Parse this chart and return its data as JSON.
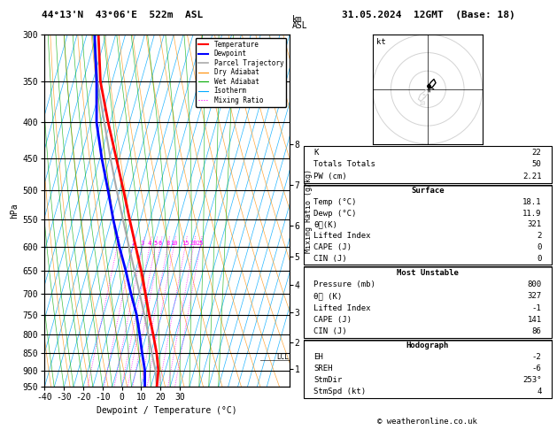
{
  "title_left": "44°13'N  43°06'E  522m  ASL",
  "title_right": "31.05.2024  12GMT  (Base: 18)",
  "xlabel": "Dewpoint / Temperature (°C)",
  "ylabel_left": "hPa",
  "pressure_levels": [
    300,
    350,
    400,
    450,
    500,
    550,
    600,
    650,
    700,
    750,
    800,
    850,
    900,
    950
  ],
  "pressure_min": 300,
  "pressure_max": 950,
  "temp_min": -40,
  "temp_max": 35,
  "temp_profile_T": [
    18.1,
    16.5,
    13.0,
    8.5,
    3.5,
    -1.5,
    -7.0,
    -13.5,
    -20.5,
    -28.0,
    -36.5,
    -46.0,
    -56.0,
    -64.0
  ],
  "temp_profile_P": [
    950,
    900,
    850,
    800,
    750,
    700,
    650,
    600,
    550,
    500,
    450,
    400,
    350,
    300
  ],
  "dewp_profile_T": [
    11.9,
    9.5,
    5.5,
    1.5,
    -3.0,
    -9.0,
    -15.0,
    -22.0,
    -29.0,
    -36.0,
    -44.0,
    -52.0,
    -58.0,
    -66.0
  ],
  "dewp_profile_P": [
    950,
    900,
    850,
    800,
    750,
    700,
    650,
    600,
    550,
    500,
    450,
    400,
    350,
    300
  ],
  "parcel_profile_T": [
    18.1,
    15.0,
    10.5,
    6.0,
    1.0,
    -4.5,
    -10.5,
    -17.0,
    -24.0,
    -31.5,
    -39.5,
    -48.0,
    -57.5,
    -66.0
  ],
  "parcel_profile_P": [
    950,
    900,
    850,
    800,
    750,
    700,
    650,
    600,
    550,
    500,
    450,
    400,
    350,
    300
  ],
  "temp_color": "#ff0000",
  "dewp_color": "#0000ff",
  "parcel_color": "#aaaaaa",
  "dry_adiabat_color": "#ff8c00",
  "wet_adiabat_color": "#00aa00",
  "isotherm_color": "#00aaff",
  "mixing_ratio_color": "#ff00ff",
  "lcl_pressure": 870,
  "mixing_ratio_values": [
    1,
    2,
    3,
    4,
    5,
    6,
    8,
    10,
    15,
    20,
    25
  ],
  "km_ticks": [
    1,
    2,
    3,
    4,
    5,
    6,
    7,
    8
  ],
  "km_pressures": [
    895,
    820,
    745,
    680,
    620,
    560,
    490,
    430
  ],
  "skew": 45,
  "copyright": "© weatheronline.co.uk",
  "hodograph_u": [
    1.5,
    3.0,
    4.5,
    3.5,
    2.0,
    0.5
  ],
  "hodograph_v": [
    0.5,
    1.5,
    3.5,
    5.5,
    4.0,
    2.0
  ],
  "hodograph_gray_u": [
    -0.5,
    -2.0,
    -4.0,
    -5.0,
    -3.5,
    -1.5,
    0.5
  ],
  "hodograph_gray_v": [
    0.0,
    -1.5,
    -3.0,
    -5.5,
    -6.5,
    -4.5,
    -2.0
  ]
}
